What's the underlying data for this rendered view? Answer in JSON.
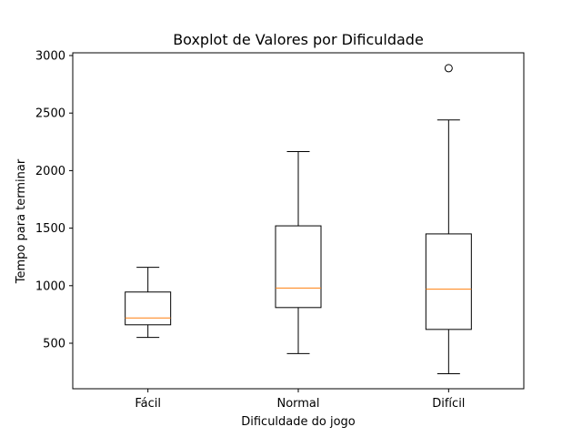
{
  "chart_data": {
    "type": "boxplot",
    "title": "Boxplot de Valores por Dificuldade",
    "xlabel": "Dificuldade do jogo",
    "ylabel": "Tempo para terminar",
    "ylim": [
      100,
      3000
    ],
    "yticks": [
      500,
      1000,
      1500,
      2000,
      2500,
      3000
    ],
    "grid": false,
    "colors": {
      "box": "#000000",
      "median": "#ff7f0e",
      "background": "#ffffff"
    },
    "categories": [
      "Fácil",
      "Normal",
      "Difícil"
    ],
    "boxes": [
      {
        "category": "Fácil",
        "whisker_low": 550,
        "q1": 660,
        "median": 720,
        "q3": 945,
        "whisker_high": 1160,
        "outliers": []
      },
      {
        "category": "Normal",
        "whisker_low": 410,
        "q1": 810,
        "median": 980,
        "q3": 1520,
        "whisker_high": 2165,
        "outliers": []
      },
      {
        "category": "Difícil",
        "whisker_low": 235,
        "q1": 620,
        "median": 970,
        "q3": 1450,
        "whisker_high": 2440,
        "outliers": [
          2890
        ]
      }
    ]
  }
}
